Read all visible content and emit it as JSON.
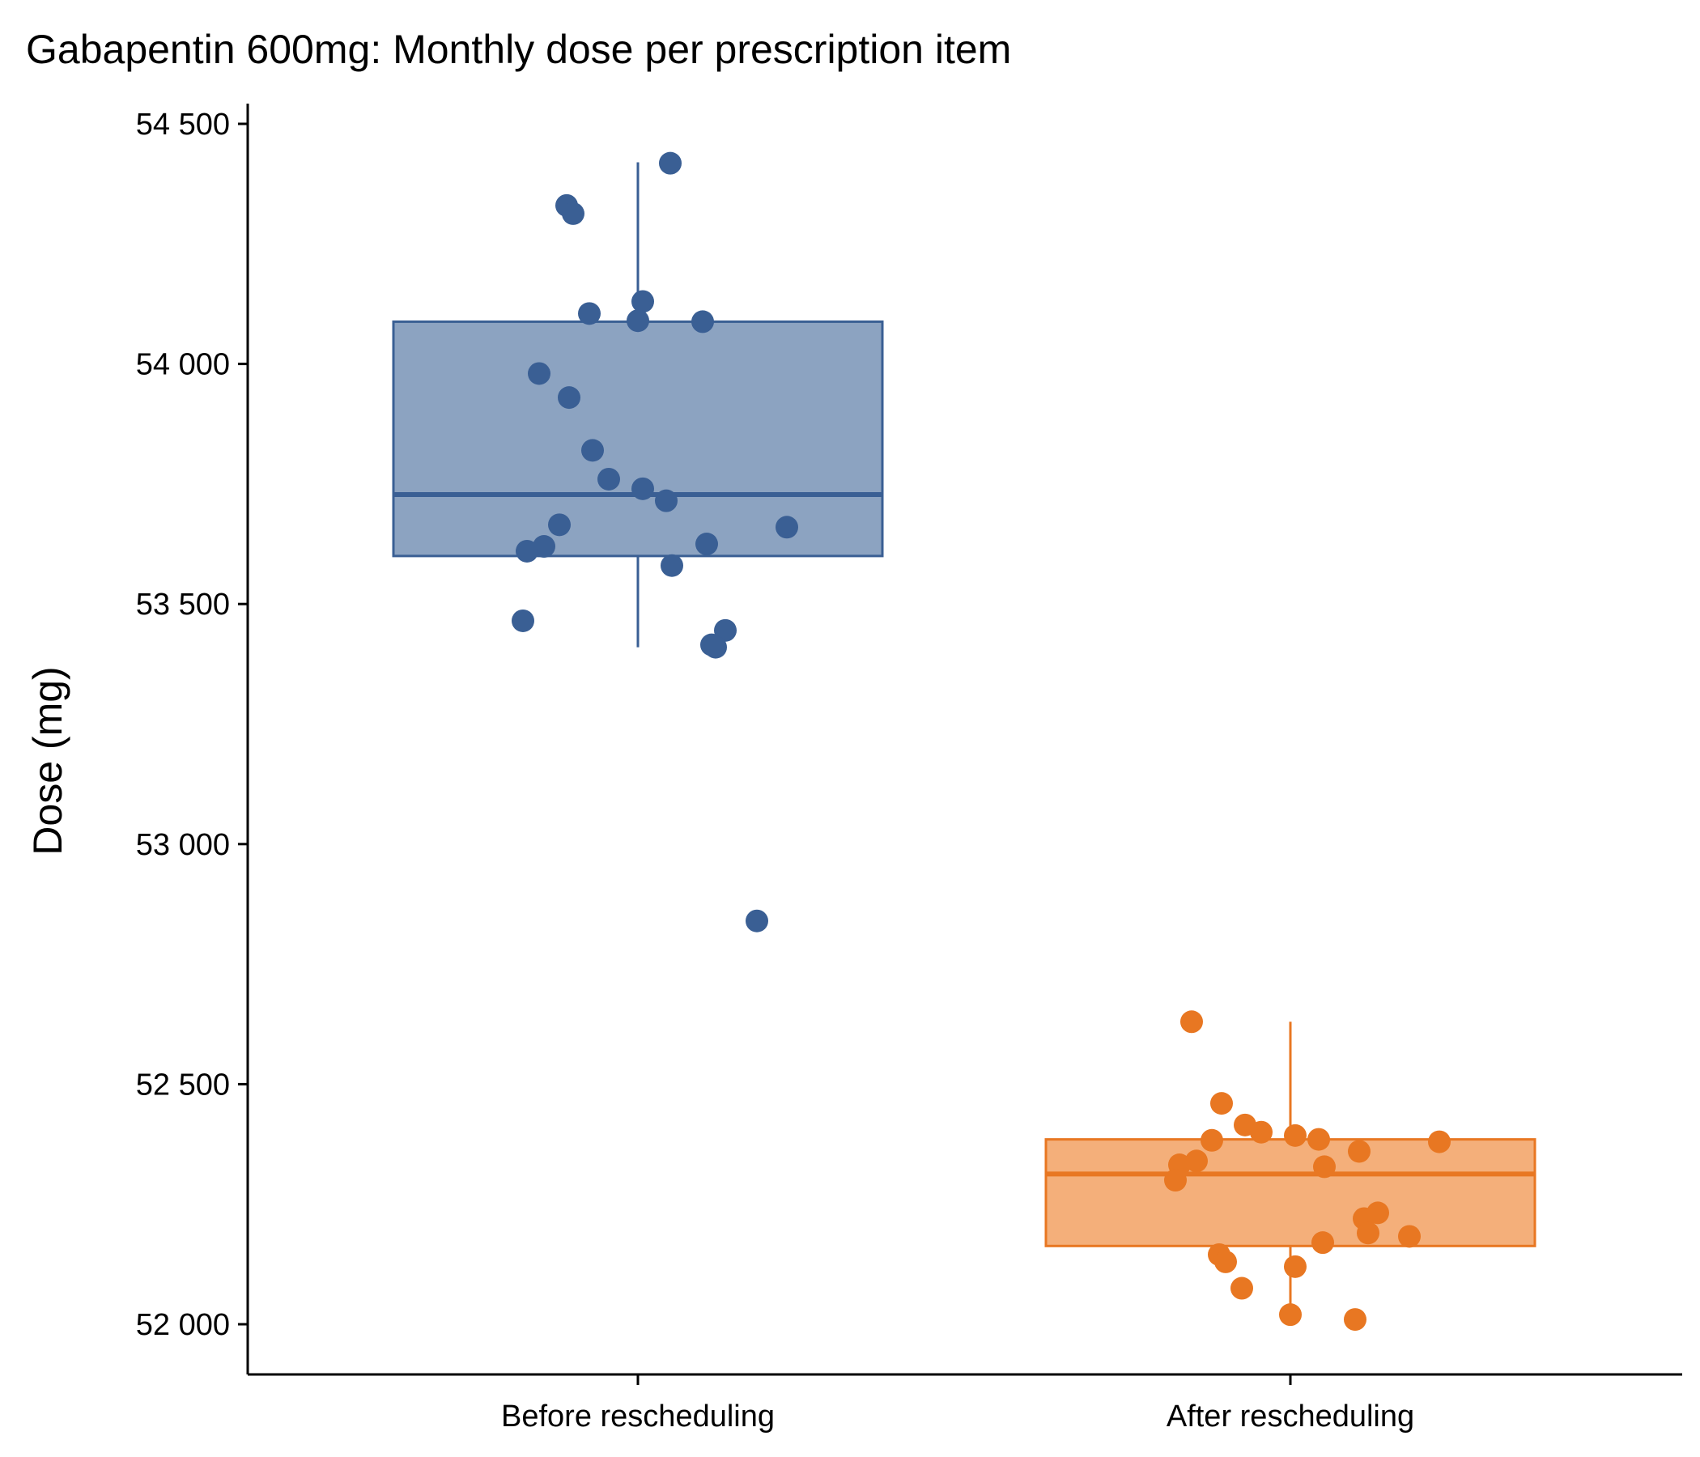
{
  "chart_data": {
    "type": "box",
    "title": "Gabapentin 600mg: Monthly dose per prescription item",
    "xlabel": "",
    "ylabel": "Dose (mg)",
    "ylim": [
      51890,
      54540
    ],
    "yticks": [
      52000,
      52500,
      53000,
      53500,
      54000,
      54500
    ],
    "ytick_labels": [
      "52 000",
      "52 500",
      "53 000",
      "53 500",
      "54 000",
      "54 500"
    ],
    "categories": [
      "Before rescheduling",
      "After rescheduling"
    ],
    "grid": false,
    "legend": "none",
    "groups": [
      {
        "category": "Before rescheduling",
        "color": "#3A5F94",
        "fill": "#8CA3C1",
        "box": {
          "whisker_low": 53410,
          "q1": 53600,
          "median": 53728,
          "q3": 54088,
          "whisker_high": 54420
        },
        "points": [
          54418,
          54330,
          54313,
          54130,
          54105,
          54090,
          54088,
          53980,
          53930,
          53820,
          53760,
          53740,
          53715,
          53665,
          53660,
          53625,
          53620,
          53610,
          53580,
          53465,
          53445,
          53415,
          53410,
          52840
        ]
      },
      {
        "category": "After rescheduling",
        "color": "#E87722",
        "fill": "#F4AF7A",
        "box": {
          "whisker_low": 52012,
          "q1": 52163,
          "median": 52313,
          "q3": 52385,
          "whisker_high": 52630
        },
        "points": [
          52630,
          52460,
          52415,
          52400,
          52393,
          52385,
          52383,
          52380,
          52360,
          52340,
          52332,
          52328,
          52300,
          52232,
          52220,
          52190,
          52183,
          52170,
          52145,
          52130,
          52120,
          52075,
          52020,
          52010
        ]
      }
    ]
  }
}
